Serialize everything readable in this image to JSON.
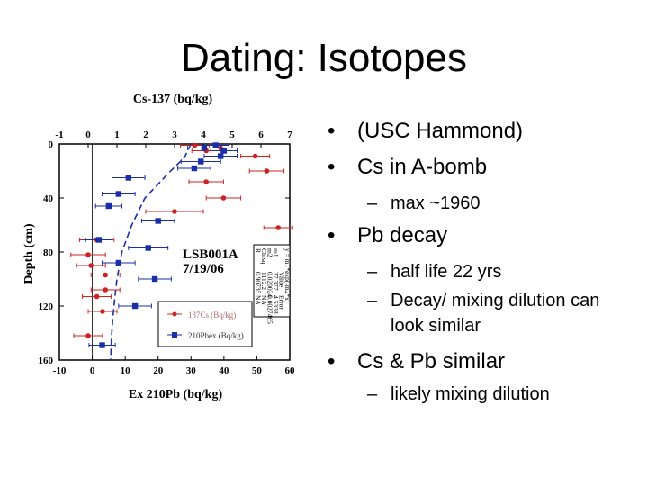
{
  "slide": {
    "title": "Dating: Isotopes"
  },
  "bullets": [
    {
      "level": 1,
      "text": "(USC Hammond)"
    },
    {
      "level": 1,
      "text": "Cs in A-bomb"
    },
    {
      "level": 2,
      "text": "max ~1960"
    },
    {
      "level": 1,
      "text": "Pb decay"
    },
    {
      "level": 2,
      "text": "half life 22 yrs"
    },
    {
      "level": 2,
      "text": "Decay/ mixing dilution can look similar"
    },
    {
      "level": 1,
      "text": "Cs & Pb similar"
    },
    {
      "level": 2,
      "text": "likely mixing dilution"
    }
  ],
  "chart_data": {
    "type": "scatter",
    "title": "",
    "top_axis_label": "Cs-137 (bq/kg)",
    "top_xlim": [
      -1,
      7
    ],
    "top_ticks": [
      "-1",
      "0",
      "1",
      "2",
      "3",
      "4",
      "5",
      "6",
      "7"
    ],
    "bottom_axis_label": "Ex 210Pb (bq/kg)",
    "bottom_xlim": [
      -10,
      60
    ],
    "bottom_ticks": [
      "-10",
      "0",
      "10",
      "20",
      "30",
      "40",
      "50",
      "60"
    ],
    "ylabel": "Depth (cm)",
    "ylim": [
      0,
      160
    ],
    "y_reversed": true,
    "yticks": [
      "0",
      "40",
      "80",
      "120",
      "160"
    ],
    "core_label": [
      "LSB001A",
      "7/19/06"
    ],
    "colors": {
      "cs": "#cc2222",
      "pb": "#1a2ea8",
      "fit": "#1a2ea8"
    },
    "series": [
      {
        "name": "137Cs (Bq/kg)",
        "axis": "top",
        "points": [
          {
            "x": 3.7,
            "y": 1,
            "err": 0.5
          },
          {
            "x": 4.6,
            "y": 3,
            "err": 0.6
          },
          {
            "x": 4.1,
            "y": 5,
            "err": 0.5
          },
          {
            "x": 5.8,
            "y": 9,
            "err": 0.5
          },
          {
            "x": 6.2,
            "y": 20,
            "err": 0.6
          },
          {
            "x": 4.1,
            "y": 28,
            "err": 0.6
          },
          {
            "x": 4.7,
            "y": 40,
            "err": 0.6
          },
          {
            "x": 3.0,
            "y": 50,
            "err": 1.0
          },
          {
            "x": 6.6,
            "y": 62,
            "err": 0.5
          },
          {
            "x": 0.3,
            "y": 71,
            "err": 0.6
          },
          {
            "x": 0.0,
            "y": 82,
            "err": 0.6
          },
          {
            "x": 0.1,
            "y": 90,
            "err": 0.5
          },
          {
            "x": 0.6,
            "y": 97,
            "err": 0.5
          },
          {
            "x": 0.6,
            "y": 108,
            "err": 0.5
          },
          {
            "x": 0.3,
            "y": 113,
            "err": 0.5
          },
          {
            "x": 0.5,
            "y": 124,
            "err": 0.5
          },
          {
            "x": 0.0,
            "y": 142,
            "err": 0.5
          }
        ]
      },
      {
        "name": "210Pbex (Bq/kg)",
        "axis": "bottom",
        "points": [
          {
            "x": 37.5,
            "y": 1,
            "err": 4
          },
          {
            "x": 34,
            "y": 3,
            "err": 5
          },
          {
            "x": 40,
            "y": 5,
            "err": 4
          },
          {
            "x": 39,
            "y": 9,
            "err": 5
          },
          {
            "x": 33,
            "y": 13,
            "err": 6
          },
          {
            "x": 31,
            "y": 18,
            "err": 5
          },
          {
            "x": 11,
            "y": 25,
            "err": 5
          },
          {
            "x": 8,
            "y": 37,
            "err": 5
          },
          {
            "x": 5,
            "y": 46,
            "err": 4
          },
          {
            "x": 20,
            "y": 57,
            "err": 5
          },
          {
            "x": 2,
            "y": 71,
            "err": 4
          },
          {
            "x": 17,
            "y": 77,
            "err": 6
          },
          {
            "x": 8,
            "y": 88,
            "err": 5
          },
          {
            "x": 19,
            "y": 100,
            "err": 5
          },
          {
            "x": 13,
            "y": 120,
            "err": 5
          },
          {
            "x": 3,
            "y": 149,
            "err": 4
          }
        ]
      }
    ],
    "fit_curve": {
      "axis": "bottom",
      "x": [
        30,
        28,
        23,
        16,
        12,
        9,
        7.5,
        6.8,
        6.2,
        5.8,
        5.6
      ],
      "y": [
        0,
        10,
        22,
        40,
        60,
        80,
        100,
        115,
        130,
        145,
        160
      ]
    },
    "fit_table": {
      "rows": [
        [
          "y = m1*exp(-m2*x)",
          "",
          ""
        ],
        [
          "",
          "Value",
          "Error"
        ],
        [
          "m1",
          "37.377",
          "4.5338"
        ],
        [
          "m2",
          "0.020024",
          "0.0027465"
        ],
        [
          "Chisq",
          "1112.2",
          "NA"
        ],
        [
          "R",
          "0.90735",
          "NA"
        ]
      ]
    },
    "legend": [
      "137Cs (Bq/kg)",
      "210Pbex (Bq/kg)"
    ]
  }
}
